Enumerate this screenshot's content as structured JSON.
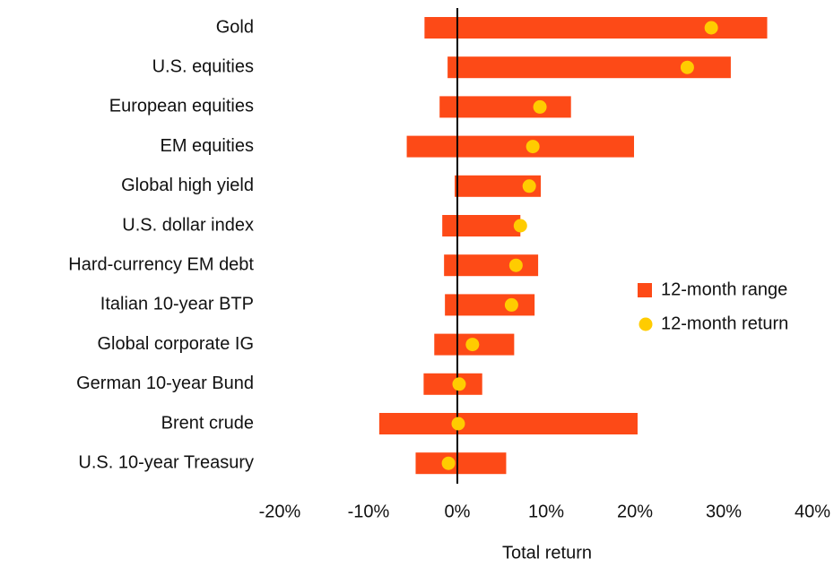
{
  "chart_data": {
    "type": "range_dot",
    "categories": [
      "Gold",
      "U.S. equities",
      "European equities",
      "EM equities",
      "Global high yield",
      "U.S. dollar index",
      "Hard-currency EM debt",
      "Italian 10-year BTP",
      "Global corporate IG",
      "German 10-year Bund",
      "Brent crude",
      "U.S. 10-year Treasury"
    ],
    "series": [
      {
        "name": "12-month range",
        "color": "#fd4a17",
        "low": [
          -3.7,
          -1.1,
          -2.0,
          -5.7,
          -0.3,
          -1.7,
          -1.5,
          -1.4,
          -2.6,
          -3.8,
          -8.8,
          -4.7
        ],
        "high": [
          34.9,
          30.8,
          12.8,
          19.9,
          9.4,
          7.1,
          9.1,
          8.7,
          6.4,
          2.8,
          20.3,
          5.5
        ]
      },
      {
        "name": "12-month return",
        "color": "#ffcc00",
        "values": [
          28.6,
          25.9,
          9.3,
          8.5,
          8.1,
          7.1,
          6.6,
          6.1,
          1.7,
          0.2,
          0.1,
          -1.0
        ]
      }
    ],
    "xlabel": "Total return",
    "xlim": [
      -20,
      40
    ],
    "xticks": [
      {
        "value": -20,
        "label": "-20%"
      },
      {
        "value": -10,
        "label": "-10%"
      },
      {
        "value": 0,
        "label": "0%"
      },
      {
        "value": 10,
        "label": "10%"
      },
      {
        "value": 20,
        "label": "20%"
      },
      {
        "value": 30,
        "label": "30%"
      },
      {
        "value": 40,
        "label": "40%"
      }
    ],
    "legend": "right"
  }
}
